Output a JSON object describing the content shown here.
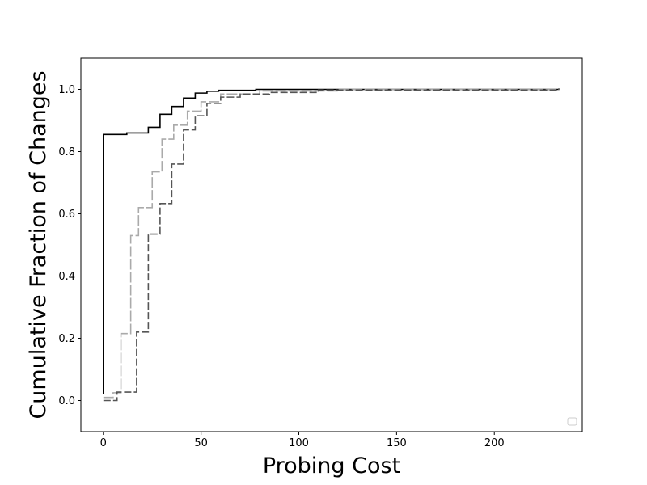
{
  "chart_data": {
    "type": "line",
    "step": true,
    "title": "",
    "xlabel": "Probing Cost",
    "ylabel": "Cumulative Fraction of Changes",
    "xlim": [
      -11.5,
      245
    ],
    "ylim": [
      -0.1,
      1.1
    ],
    "xticks": [
      0,
      50,
      100,
      150,
      200
    ],
    "yticks": [
      0.0,
      0.2,
      0.4,
      0.6,
      0.8,
      1.0
    ],
    "xtick_labels": [
      "0",
      "50",
      "100",
      "150",
      "200"
    ],
    "ytick_labels": [
      "0.0",
      "0.2",
      "0.4",
      "0.6",
      "0.8",
      "1.0"
    ],
    "grid": false,
    "legend": {
      "position": "bottom-right",
      "entries": []
    },
    "series": [
      {
        "color": "#000000",
        "dash": "solid",
        "x": [
          0,
          0,
          12,
          23,
          29,
          35,
          41,
          47,
          53,
          59,
          78,
          100,
          233
        ],
        "y": [
          0.02,
          0.855,
          0.86,
          0.878,
          0.92,
          0.945,
          0.972,
          0.988,
          0.994,
          0.997,
          1.0,
          1.0,
          1.003
        ]
      },
      {
        "color": "#aaaaaa",
        "dash": "long-dash",
        "x": [
          0,
          5,
          9,
          14,
          18,
          25,
          30,
          36,
          43,
          50,
          60,
          80,
          120,
          233
        ],
        "y": [
          0.01,
          0.025,
          0.215,
          0.53,
          0.62,
          0.735,
          0.84,
          0.885,
          0.93,
          0.96,
          0.985,
          0.995,
          1.0,
          1.003
        ]
      },
      {
        "color": "#555555",
        "dash": "dash",
        "x": [
          0,
          7,
          17,
          23,
          29,
          35,
          41,
          47,
          53,
          60,
          70,
          85,
          110,
          233
        ],
        "y": [
          0.0,
          0.027,
          0.22,
          0.535,
          0.633,
          0.76,
          0.87,
          0.915,
          0.955,
          0.975,
          0.985,
          0.99,
          0.998,
          1.003
        ]
      }
    ]
  }
}
